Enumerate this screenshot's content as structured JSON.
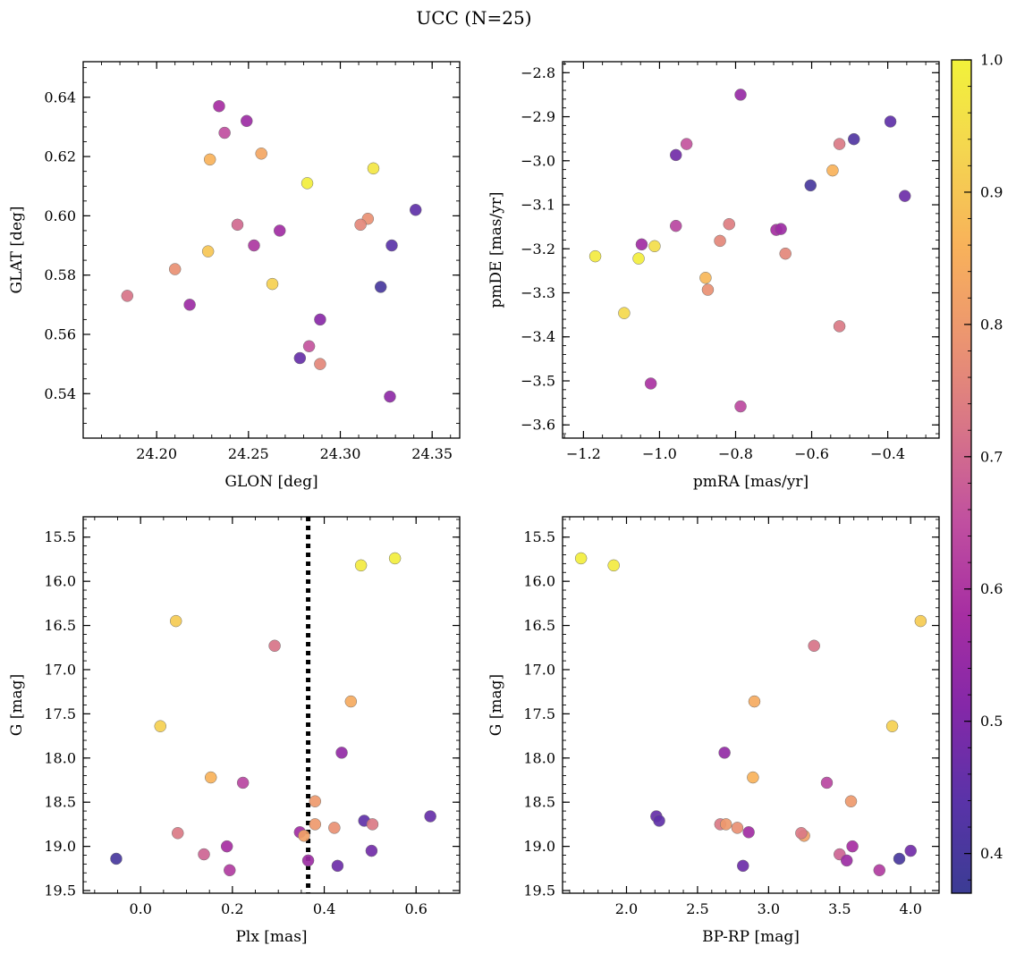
{
  "title": "UCC (N=25)",
  "colormap": {
    "name": "plasma",
    "stops": [
      "#3b3c94",
      "#5a33a8",
      "#8428a8",
      "#a62ea2",
      "#c04fa0",
      "#d77488",
      "#ec9570",
      "#f8b25a",
      "#f4d550",
      "#f2f23a"
    ],
    "min": 0.37,
    "max": 1.0,
    "ticks": [
      0.4,
      0.5,
      0.6,
      0.7,
      0.8,
      0.9,
      1.0
    ],
    "tick_labels": [
      "0.4",
      "0.5",
      "0.6",
      "0.7",
      "0.8",
      "0.9",
      "1.0"
    ]
  },
  "chart_data": [
    {
      "type": "scatter",
      "name": "glon-glat",
      "xlabel": "GLON [deg]",
      "ylabel": "GLAT [deg]",
      "xlim": [
        24.16,
        24.365
      ],
      "ylim": [
        0.525,
        0.652
      ],
      "xticks": [
        24.2,
        24.25,
        24.3,
        24.35
      ],
      "xtick_labels": [
        "24.20",
        "24.25",
        "24.30",
        "24.35"
      ],
      "xminor": 0.01,
      "yticks": [
        0.54,
        0.56,
        0.58,
        0.6,
        0.62,
        0.64
      ],
      "ytick_labels": [
        "0.54",
        "0.56",
        "0.58",
        "0.60",
        "0.62",
        "0.64"
      ],
      "yminor": 0.005,
      "points": [
        {
          "x": 24.234,
          "y": 0.637,
          "c": 0.58
        },
        {
          "x": 24.249,
          "y": 0.632,
          "c": 0.56
        },
        {
          "x": 24.237,
          "y": 0.628,
          "c": 0.65
        },
        {
          "x": 24.229,
          "y": 0.619,
          "c": 0.86
        },
        {
          "x": 24.257,
          "y": 0.621,
          "c": 0.83
        },
        {
          "x": 24.318,
          "y": 0.616,
          "c": 0.97
        },
        {
          "x": 24.282,
          "y": 0.611,
          "c": 0.99
        },
        {
          "x": 24.341,
          "y": 0.602,
          "c": 0.45
        },
        {
          "x": 24.244,
          "y": 0.597,
          "c": 0.7
        },
        {
          "x": 24.315,
          "y": 0.599,
          "c": 0.78
        },
        {
          "x": 24.311,
          "y": 0.597,
          "c": 0.76
        },
        {
          "x": 24.267,
          "y": 0.595,
          "c": 0.57
        },
        {
          "x": 24.253,
          "y": 0.59,
          "c": 0.6
        },
        {
          "x": 24.328,
          "y": 0.59,
          "c": 0.44
        },
        {
          "x": 24.228,
          "y": 0.588,
          "c": 0.9
        },
        {
          "x": 24.21,
          "y": 0.582,
          "c": 0.78
        },
        {
          "x": 24.263,
          "y": 0.577,
          "c": 0.92
        },
        {
          "x": 24.322,
          "y": 0.576,
          "c": 0.4
        },
        {
          "x": 24.184,
          "y": 0.573,
          "c": 0.72
        },
        {
          "x": 24.218,
          "y": 0.57,
          "c": 0.56
        },
        {
          "x": 24.289,
          "y": 0.565,
          "c": 0.52
        },
        {
          "x": 24.283,
          "y": 0.556,
          "c": 0.66
        },
        {
          "x": 24.278,
          "y": 0.552,
          "c": 0.46
        },
        {
          "x": 24.289,
          "y": 0.55,
          "c": 0.76
        },
        {
          "x": 24.327,
          "y": 0.539,
          "c": 0.53
        }
      ]
    },
    {
      "type": "scatter",
      "name": "pmra-pmde",
      "xlabel": "pmRA [mas/yr]",
      "ylabel": "pmDE [mas/yr]",
      "xlim": [
        -1.255,
        -0.265
      ],
      "ylim": [
        -3.63,
        -2.775
      ],
      "xticks": [
        -1.2,
        -1.0,
        -0.8,
        -0.6,
        -0.4
      ],
      "xtick_labels": [
        "−1.2",
        "−1.0",
        "−0.8",
        "−0.6",
        "−0.4"
      ],
      "xminor": 0.05,
      "yticks": [
        -3.6,
        -3.5,
        -3.4,
        -3.3,
        -3.2,
        -3.1,
        -3.0,
        -2.9,
        -2.8
      ],
      "ytick_labels": [
        "−3.6",
        "−3.5",
        "−3.4",
        "−3.3",
        "−3.2",
        "−3.1",
        "−3.0",
        "−2.9",
        "−2.8"
      ],
      "yminor": 0.02,
      "points": [
        {
          "x": -0.787,
          "y": -2.85,
          "c": 0.55
        },
        {
          "x": -0.393,
          "y": -2.911,
          "c": 0.45
        },
        {
          "x": -0.489,
          "y": -2.951,
          "c": 0.42
        },
        {
          "x": -0.929,
          "y": -2.962,
          "c": 0.66
        },
        {
          "x": -0.527,
          "y": -2.962,
          "c": 0.73
        },
        {
          "x": -0.957,
          "y": -2.987,
          "c": 0.48
        },
        {
          "x": -0.545,
          "y": -3.022,
          "c": 0.86
        },
        {
          "x": -0.603,
          "y": -3.056,
          "c": 0.4
        },
        {
          "x": -0.355,
          "y": -3.08,
          "c": 0.47
        },
        {
          "x": -0.817,
          "y": -3.144,
          "c": 0.74
        },
        {
          "x": -0.957,
          "y": -3.148,
          "c": 0.63
        },
        {
          "x": -0.693,
          "y": -3.157,
          "c": 0.58
        },
        {
          "x": -0.681,
          "y": -3.155,
          "c": 0.56
        },
        {
          "x": -0.841,
          "y": -3.182,
          "c": 0.76
        },
        {
          "x": -1.047,
          "y": -3.19,
          "c": 0.57
        },
        {
          "x": -1.013,
          "y": -3.194,
          "c": 0.95
        },
        {
          "x": -0.669,
          "y": -3.211,
          "c": 0.76
        },
        {
          "x": -1.169,
          "y": -3.217,
          "c": 0.98
        },
        {
          "x": -1.055,
          "y": -3.222,
          "c": 0.99
        },
        {
          "x": -0.879,
          "y": -3.266,
          "c": 0.87
        },
        {
          "x": -0.873,
          "y": -3.293,
          "c": 0.78
        },
        {
          "x": -1.093,
          "y": -3.346,
          "c": 0.94
        },
        {
          "x": -0.527,
          "y": -3.376,
          "c": 0.73
        },
        {
          "x": -1.023,
          "y": -3.506,
          "c": 0.59
        },
        {
          "x": -0.787,
          "y": -3.558,
          "c": 0.64
        }
      ]
    },
    {
      "type": "scatter",
      "name": "plx-g",
      "xlabel": "Plx [mas]",
      "ylabel": "G [mag]",
      "xlim": [
        -0.125,
        0.695
      ],
      "ylim": [
        19.53,
        15.27
      ],
      "y_inverted": true,
      "xticks": [
        0.0,
        0.2,
        0.4,
        0.6
      ],
      "xtick_labels": [
        "0.0",
        "0.2",
        "0.4",
        "0.6"
      ],
      "xminor": 0.05,
      "yticks": [
        15.5,
        16.0,
        16.5,
        17.0,
        17.5,
        18.0,
        18.5,
        19.0,
        19.5
      ],
      "ytick_labels": [
        "15.5",
        "16.0",
        "16.5",
        "17.0",
        "17.5",
        "18.0",
        "18.5",
        "19.0",
        "19.5"
      ],
      "yminor": 0.1,
      "vline": {
        "x": 0.365,
        "style": "dotted"
      },
      "points": [
        {
          "x": 0.554,
          "y": 15.74,
          "c": 0.99
        },
        {
          "x": 0.48,
          "y": 15.82,
          "c": 0.98
        },
        {
          "x": 0.077,
          "y": 16.45,
          "c": 0.91
        },
        {
          "x": 0.292,
          "y": 16.73,
          "c": 0.72
        },
        {
          "x": 0.458,
          "y": 17.36,
          "c": 0.84
        },
        {
          "x": 0.043,
          "y": 17.64,
          "c": 0.92
        },
        {
          "x": 0.438,
          "y": 17.94,
          "c": 0.54
        },
        {
          "x": 0.153,
          "y": 18.22,
          "c": 0.86
        },
        {
          "x": 0.223,
          "y": 18.28,
          "c": 0.63
        },
        {
          "x": 0.38,
          "y": 18.49,
          "c": 0.8
        },
        {
          "x": 0.631,
          "y": 18.66,
          "c": 0.46
        },
        {
          "x": 0.487,
          "y": 18.71,
          "c": 0.45
        },
        {
          "x": 0.505,
          "y": 18.75,
          "c": 0.73
        },
        {
          "x": 0.38,
          "y": 18.75,
          "c": 0.8
        },
        {
          "x": 0.422,
          "y": 18.79,
          "c": 0.78
        },
        {
          "x": 0.347,
          "y": 18.84,
          "c": 0.57
        },
        {
          "x": 0.356,
          "y": 18.88,
          "c": 0.82
        },
        {
          "x": 0.081,
          "y": 18.85,
          "c": 0.73
        },
        {
          "x": 0.188,
          "y": 19.0,
          "c": 0.58
        },
        {
          "x": 0.503,
          "y": 19.05,
          "c": 0.48
        },
        {
          "x": 0.138,
          "y": 19.09,
          "c": 0.69
        },
        {
          "x": -0.053,
          "y": 19.14,
          "c": 0.4
        },
        {
          "x": 0.365,
          "y": 19.16,
          "c": 0.56
        },
        {
          "x": 0.429,
          "y": 19.22,
          "c": 0.47
        },
        {
          "x": 0.194,
          "y": 19.27,
          "c": 0.61
        }
      ]
    },
    {
      "type": "scatter",
      "name": "bprp-g",
      "xlabel": "BP-RP [mag]",
      "ylabel": "G [mag]",
      "xlim": [
        1.55,
        4.2
      ],
      "ylim": [
        19.53,
        15.27
      ],
      "y_inverted": true,
      "xticks": [
        2.0,
        2.5,
        3.0,
        3.5,
        4.0
      ],
      "xtick_labels": [
        "2.0",
        "2.5",
        "3.0",
        "3.5",
        "4.0"
      ],
      "xminor": 0.1,
      "yticks": [
        15.5,
        16.0,
        16.5,
        17.0,
        17.5,
        18.0,
        18.5,
        19.0,
        19.5
      ],
      "ytick_labels": [
        "15.5",
        "16.0",
        "16.5",
        "17.0",
        "17.5",
        "18.0",
        "18.5",
        "19.0",
        "19.5"
      ],
      "yminor": 0.1,
      "points": [
        {
          "x": 1.68,
          "y": 15.74,
          "c": 0.99
        },
        {
          "x": 1.91,
          "y": 15.82,
          "c": 0.98
        },
        {
          "x": 4.07,
          "y": 16.45,
          "c": 0.91
        },
        {
          "x": 3.32,
          "y": 16.73,
          "c": 0.72
        },
        {
          "x": 2.9,
          "y": 17.36,
          "c": 0.84
        },
        {
          "x": 3.87,
          "y": 17.64,
          "c": 0.92
        },
        {
          "x": 2.69,
          "y": 17.94,
          "c": 0.54
        },
        {
          "x": 2.89,
          "y": 18.22,
          "c": 0.86
        },
        {
          "x": 3.41,
          "y": 18.28,
          "c": 0.63
        },
        {
          "x": 3.58,
          "y": 18.49,
          "c": 0.8
        },
        {
          "x": 2.21,
          "y": 18.66,
          "c": 0.46
        },
        {
          "x": 2.23,
          "y": 18.71,
          "c": 0.45
        },
        {
          "x": 2.66,
          "y": 18.75,
          "c": 0.73
        },
        {
          "x": 2.7,
          "y": 18.75,
          "c": 0.8
        },
        {
          "x": 2.78,
          "y": 18.79,
          "c": 0.78
        },
        {
          "x": 2.86,
          "y": 18.84,
          "c": 0.57
        },
        {
          "x": 3.25,
          "y": 18.88,
          "c": 0.82
        },
        {
          "x": 3.23,
          "y": 18.85,
          "c": 0.73
        },
        {
          "x": 3.59,
          "y": 19.0,
          "c": 0.58
        },
        {
          "x": 4.0,
          "y": 19.05,
          "c": 0.48
        },
        {
          "x": 3.5,
          "y": 19.09,
          "c": 0.69
        },
        {
          "x": 3.92,
          "y": 19.14,
          "c": 0.4
        },
        {
          "x": 3.55,
          "y": 19.16,
          "c": 0.56
        },
        {
          "x": 2.82,
          "y": 19.22,
          "c": 0.47
        },
        {
          "x": 3.78,
          "y": 19.27,
          "c": 0.61
        }
      ]
    }
  ]
}
